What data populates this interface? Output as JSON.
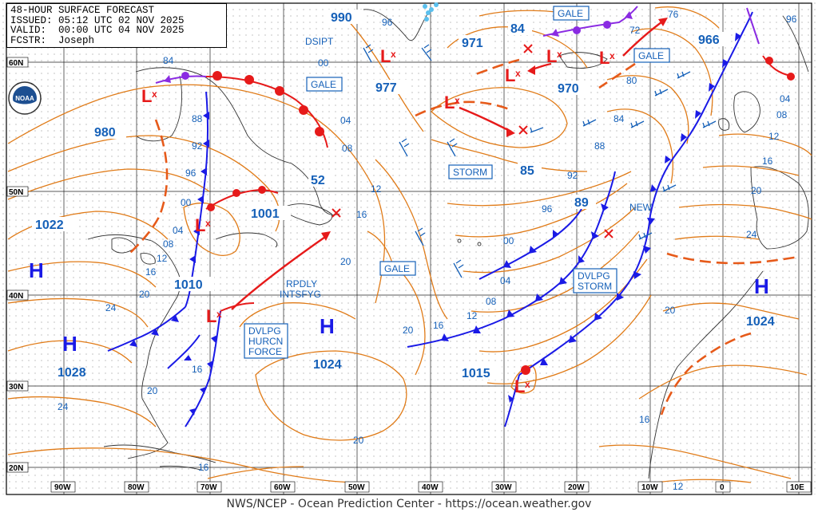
{
  "header": {
    "line1": "48-HOUR SURFACE FORECAST",
    "line2": "ISSUED: 05:12 UTC 02 NOV 2025",
    "line3": "VALID:  00:00 UTC 04 NOV 2025",
    "line4": "FCSTR:  Joseph"
  },
  "logo_text": "NOAA",
  "footer": "NWS/NCEP - Ocean Prediction Center - https://ocean.weather.gov",
  "colors": {
    "isobar": "#e07b18",
    "label": "#1560b8",
    "front_cold": "#1a1ae6",
    "front_warm": "#e61a1a",
    "occluded": "#8a2be2",
    "grid": "#222222",
    "coast": "#333333"
  },
  "lat_labels": [
    "60N",
    "50N",
    "40N",
    "30N",
    "20N"
  ],
  "lon_labels": [
    "90W",
    "80W",
    "70W",
    "60W",
    "50W",
    "40W",
    "30W",
    "20W",
    "10W",
    "0",
    "10E"
  ],
  "pressure_centers": [
    {
      "type": "H",
      "value": "1028"
    },
    {
      "type": "H",
      "value": "1024"
    },
    {
      "type": "H",
      "value": "1024"
    },
    {
      "type": "H",
      "value": "1022"
    },
    {
      "type": "L",
      "value": "980"
    },
    {
      "type": "L",
      "value": "1001"
    },
    {
      "type": "L",
      "value": "1010"
    },
    {
      "type": "L",
      "value": "977"
    },
    {
      "type": "L",
      "value": "971"
    },
    {
      "type": "L",
      "value": "970"
    },
    {
      "type": "L",
      "value": "966"
    },
    {
      "type": "L",
      "value": "990"
    },
    {
      "type": "L",
      "value": "1015"
    },
    {
      "type": "L",
      "value": "85"
    },
    {
      "type": "L",
      "value": "89"
    },
    {
      "type": "L",
      "value": "84"
    },
    {
      "type": "L",
      "value": "52"
    }
  ],
  "isobar_labels": [
    "96",
    "84",
    "88",
    "92",
    "96",
    "00",
    "04",
    "08",
    "12",
    "16",
    "20",
    "24",
    "20",
    "16",
    "20",
    "16",
    "00",
    "04",
    "08",
    "12",
    "16",
    "20",
    "96",
    "92",
    "88",
    "84",
    "80",
    "72",
    "76",
    "96",
    "04",
    "08",
    "12",
    "16",
    "20",
    "24",
    "20",
    "16",
    "12",
    "00",
    "04",
    "08",
    "12",
    "16",
    "20",
    "24"
  ],
  "boxed_labels": [
    {
      "id": "gale1",
      "text": "GALE"
    },
    {
      "id": "gale2",
      "text": "GALE"
    },
    {
      "id": "gale3",
      "text": "GALE"
    },
    {
      "id": "gale4",
      "text": "GALE"
    },
    {
      "id": "storm1",
      "text": "STORM"
    },
    {
      "id": "dvlpg_storm",
      "lines": [
        "DVLPG",
        "STORM"
      ]
    },
    {
      "id": "dvlpg_hurcn",
      "lines": [
        "DVLPG",
        "HURCN",
        "FORCE"
      ]
    }
  ],
  "annotations": [
    {
      "id": "dsipt",
      "text": "DSIPT"
    },
    {
      "id": "rpdly",
      "lines": [
        "RPDLY",
        "INTSFYG"
      ]
    },
    {
      "id": "new",
      "text": "NEW"
    }
  ]
}
